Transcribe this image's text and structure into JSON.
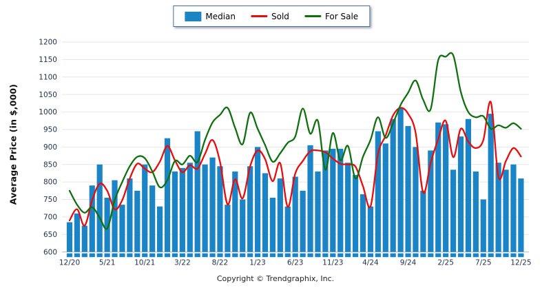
{
  "page": {
    "footer": "Copyright © Trendgraphix, Inc."
  },
  "legend": {
    "items": [
      {
        "label": "Median",
        "type": "bar",
        "color": "#1b84c6"
      },
      {
        "label": "Sold",
        "type": "line",
        "color": "#e80c0c"
      },
      {
        "label": "For Sale",
        "type": "line",
        "color": "#0f700f"
      }
    ]
  },
  "chart_data": {
    "type": "bar",
    "subtype": "bar-line-combo",
    "title": "",
    "xlabel": "",
    "ylabel": "Average Price (in $,000)",
    "ylim": [
      600,
      1200
    ],
    "ytick_step": 50,
    "yticks": [
      600,
      650,
      700,
      750,
      800,
      850,
      900,
      950,
      1000,
      1050,
      1100,
      1150,
      1200
    ],
    "grid": true,
    "legend_position": "top-center",
    "x": [
      "12/20",
      "1/21",
      "2/21",
      "3/21",
      "4/21",
      "5/21",
      "6/21",
      "7/21",
      "8/21",
      "9/21",
      "10/21",
      "11/21",
      "12/21",
      "1/22",
      "2/22",
      "3/22",
      "4/22",
      "5/22",
      "6/22",
      "7/22",
      "8/22",
      "9/22",
      "10/22",
      "11/22",
      "12/22",
      "1/23",
      "2/23",
      "3/23",
      "4/23",
      "5/23",
      "6/23",
      "7/23",
      "8/23",
      "9/23",
      "10/23",
      "11/23",
      "12/23",
      "1/24",
      "2/24",
      "3/24",
      "4/24",
      "5/24",
      "6/24",
      "7/24",
      "8/24",
      "9/24",
      "10/24",
      "11/24",
      "12/24",
      "1/25",
      "2/25",
      "3/25",
      "4/25",
      "5/25",
      "6/25",
      "7/25",
      "8/25",
      "9/25",
      "10/25",
      "11/25",
      "12/25"
    ],
    "x_ticks_shown": [
      "12/20",
      "5/21",
      "10/21",
      "3/22",
      "8/22",
      "1/23",
      "6/23",
      "11/23",
      "4/24",
      "9/24",
      "2/25",
      "7/25",
      "12/25"
    ],
    "series": [
      {
        "name": "Median",
        "type": "bar",
        "color": "#1b84c6",
        "values": [
          685,
          710,
          675,
          790,
          850,
          755,
          805,
          735,
          810,
          775,
          850,
          790,
          730,
          925,
          830,
          840,
          855,
          945,
          850,
          870,
          845,
          735,
          830,
          750,
          845,
          900,
          825,
          755,
          810,
          730,
          815,
          775,
          905,
          830,
          890,
          895,
          895,
          855,
          820,
          765,
          730,
          945,
          910,
          980,
          1010,
          960,
          900,
          775,
          890,
          970,
          965,
          835,
          930,
          980,
          830,
          750,
          995,
          855,
          835,
          850,
          810
        ]
      },
      {
        "name": "Sold",
        "type": "line",
        "color": "#e80c0c",
        "values": [
          690,
          722,
          675,
          748,
          795,
          775,
          722,
          748,
          810,
          852,
          838,
          828,
          858,
          903,
          862,
          828,
          848,
          838,
          880,
          920,
          857,
          736,
          808,
          753,
          845,
          890,
          865,
          802,
          854,
          729,
          824,
          860,
          888,
          890,
          885,
          867,
          852,
          850,
          844,
          788,
          730,
          880,
          932,
          990,
          1012,
          995,
          940,
          770,
          855,
          922,
          975,
          871,
          952,
          915,
          897,
          920,
          1028,
          815,
          860,
          897,
          873
        ]
      },
      {
        "name": "For Sale",
        "type": "line",
        "color": "#0f700f",
        "values": [
          775,
          735,
          712,
          728,
          698,
          667,
          748,
          800,
          845,
          872,
          868,
          830,
          785,
          805,
          860,
          850,
          875,
          857,
          920,
          970,
          992,
          1012,
          955,
          908,
          998,
          952,
          905,
          858,
          882,
          912,
          930,
          1010,
          938,
          975,
          835,
          940,
          862,
          903,
          810,
          872,
          920,
          985,
          926,
          968,
          1020,
          1055,
          1090,
          1035,
          1008,
          1148,
          1158,
          1162,
          1058,
          1000,
          985,
          988,
          952,
          962,
          955,
          968,
          952
        ]
      }
    ],
    "colors": {
      "grid": "#e6e6e6",
      "baseline": "#b5b5b5",
      "tick_text": "#23324a",
      "bar": "#1b84c6",
      "sold": "#e80c0c",
      "for_sale": "#0f700f"
    }
  }
}
